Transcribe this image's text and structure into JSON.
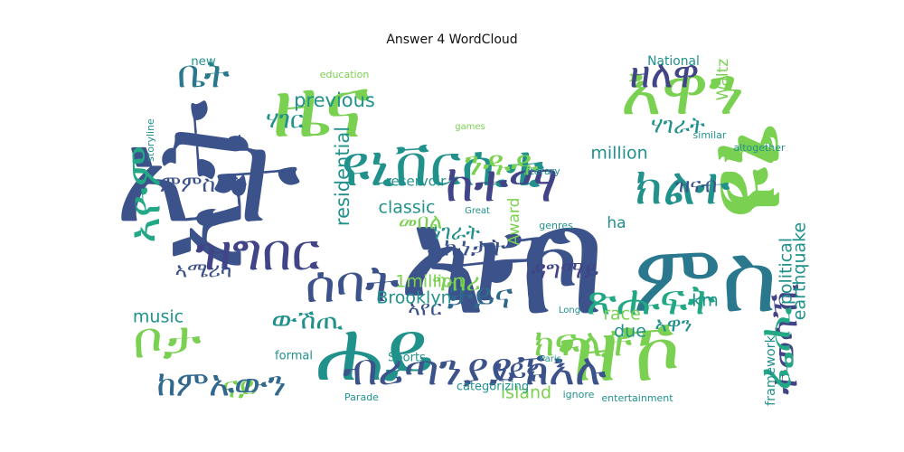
{
  "chart_data": {
    "type": "wordcloud",
    "title": "Answer 4 WordCloud",
    "colormap": "viridis",
    "words": [
      {
        "text": "ናይ",
        "weight": 1.0,
        "color": "#7ad151",
        "rotate": false
      },
      {
        "text": "ኢት",
        "weight": 0.95,
        "color": "#3b528b",
        "rotate": false
      },
      {
        "text": "ሐይ",
        "weight": 0.9,
        "color": "#21918c",
        "rotate": false
      },
      {
        "text": "ኣብ",
        "weight": 0.88,
        "color": "#3b528b",
        "rotate": false
      },
      {
        "text": "ዩኔ",
        "weight": 0.78,
        "color": "#7ad151",
        "rotate": true
      },
      {
        "text": "ዝኾ",
        "weight": 0.72,
        "color": "#7ad151",
        "rotate": false
      },
      {
        "text": "ኢት",
        "weight": 0.7,
        "color": "#3b528b",
        "rotate": true
      },
      {
        "text": "ዝኾ",
        "weight": 0.62,
        "color": "#3b528b",
        "rotate": false
      },
      {
        "text": "ምስ",
        "weight": 0.55,
        "color": "#2a788e",
        "rotate": false
      },
      {
        "text": "ዜና",
        "weight": 0.5,
        "color": "#7ad151",
        "rotate": false
      },
      {
        "text": "ዩኔ",
        "weight": 0.5,
        "color": "#7ad151",
        "rotate": true
      },
      {
        "text": "ዩኒቨርሲቲ",
        "weight": 0.33,
        "color": "#21918c",
        "rotate": false
      },
      {
        "text": "እዋን",
        "weight": 0.42,
        "color": "#7ad151",
        "rotate": false
      },
      {
        "text": "ዘለዋ",
        "weight": 0.3,
        "color": "#414487",
        "rotate": false
      },
      {
        "text": "ቤት",
        "weight": 0.3,
        "color": "#2a788e",
        "rotate": false
      },
      {
        "text": "ክልተ",
        "weight": 0.3,
        "color": "#21918c",
        "rotate": false
      },
      {
        "text": "ከተማ",
        "weight": 0.3,
        "color": "#414487",
        "rotate": false
      },
      {
        "text": "ሰባት",
        "weight": 0.3,
        "color": "#3b528b",
        "rotate": false
      },
      {
        "text": "ዝግበር",
        "weight": 0.3,
        "color": "#414487",
        "rotate": false
      },
      {
        "text": "ብሪጣንያይኽእሉ",
        "weight": 0.26,
        "color": "#3b528b",
        "rotate": false
      },
      {
        "text": "ከምኡውን",
        "weight": 0.26,
        "color": "#31688e",
        "rotate": false
      },
      {
        "text": "ቦታ",
        "weight": 0.3,
        "color": "#7ad151",
        "rotate": false
      },
      {
        "text": "ኣዮም",
        "weight": 0.26,
        "color": "#22a884",
        "rotate": true
      },
      {
        "text": "ጽሑፍት",
        "weight": 0.24,
        "color": "#22a884",
        "rotate": false
      },
      {
        "text": "ክፍሊት",
        "weight": 0.22,
        "color": "#7ad151",
        "rotate": false
      },
      {
        "text": "ቻይና",
        "weight": 0.2,
        "color": "#31688e",
        "rotate": false
      },
      {
        "text": "ንዱዱ",
        "weight": 0.2,
        "color": "#7ad151",
        "rotate": false
      },
      {
        "text": "ተወሳኺ",
        "weight": 0.22,
        "color": "#414487",
        "rotate": true
      },
      {
        "text": "ፌሒ",
        "weight": 0.26,
        "color": "#22a884",
        "rotate": true
      },
      {
        "text": "ነይሩ",
        "weight": 0.18,
        "color": "#3b528b",
        "rotate": false
      },
      {
        "text": "ውሽጢ",
        "weight": 0.16,
        "color": "#21918c",
        "rotate": false
      },
      {
        "text": "ኩነታት",
        "weight": 0.14,
        "color": "#3b528b",
        "rotate": false
      },
      {
        "text": "ግብሪ",
        "weight": 0.14,
        "color": "#7ad151",
        "rotate": false
      },
      {
        "text": "ዳግማይ",
        "weight": 0.14,
        "color": "#414487",
        "rotate": false
      },
      {
        "text": "ምምስራት",
        "weight": 0.13,
        "color": "#3b528b",
        "rotate": false
      },
      {
        "text": "መበል",
        "weight": 0.12,
        "color": "#7ad151",
        "rotate": false
      },
      {
        "text": "ሃገራት",
        "weight": 0.13,
        "color": "#21918c",
        "rotate": false
      },
      {
        "text": "ሃገር",
        "weight": 0.14,
        "color": "#21918c",
        "rotate": false
      },
      {
        "text": "ነገራት",
        "weight": 0.12,
        "color": "#21918c",
        "rotate": false
      },
      {
        "text": "ኣሜሪካ",
        "weight": 0.12,
        "color": "#3b528b",
        "rotate": false
      },
      {
        "text": "ዝናብ",
        "weight": 0.12,
        "color": "#3b528b",
        "rotate": false
      },
      {
        "text": "ኣየር",
        "weight": 0.12,
        "color": "#3b528b",
        "rotate": false
      },
      {
        "text": "ኣዋን",
        "weight": 0.12,
        "color": "#21918c",
        "rotate": false
      },
      {
        "text": "National",
        "weight": 0.12,
        "color": "#21918c",
        "rotate": false
      },
      {
        "text": "previous",
        "weight": 0.11,
        "color": "#21918c",
        "rotate": false
      },
      {
        "text": "residential",
        "weight": 0.11,
        "color": "#21918c",
        "rotate": true
      },
      {
        "text": "classic",
        "weight": 0.1,
        "color": "#21918c",
        "rotate": false
      },
      {
        "text": "million",
        "weight": 0.1,
        "color": "#21918c",
        "rotate": false
      },
      {
        "text": "1million",
        "weight": 0.1,
        "color": "#7ad151",
        "rotate": false
      },
      {
        "text": "Brooklyn",
        "weight": 0.1,
        "color": "#21918c",
        "rotate": false
      },
      {
        "text": "music",
        "weight": 0.1,
        "color": "#21918c",
        "rotate": false
      },
      {
        "text": "political",
        "weight": 0.1,
        "color": "#21918c",
        "rotate": true
      },
      {
        "text": "earthquake",
        "weight": 0.1,
        "color": "#21918c",
        "rotate": true
      },
      {
        "text": "island",
        "weight": 0.1,
        "color": "#7ad151",
        "rotate": false
      },
      {
        "text": "race",
        "weight": 0.1,
        "color": "#7ad151",
        "rotate": false
      },
      {
        "text": "due",
        "weight": 0.1,
        "color": "#21918c",
        "rotate": false
      },
      {
        "text": "km",
        "weight": 0.1,
        "color": "#21918c",
        "rotate": false
      },
      {
        "text": "Award",
        "weight": 0.09,
        "color": "#7ad151",
        "rotate": true
      },
      {
        "text": "Waltz",
        "weight": 0.09,
        "color": "#7ad151",
        "rotate": true
      },
      {
        "text": "new",
        "weight": 0.09,
        "color": "#21918c",
        "rotate": false
      },
      {
        "text": "ha",
        "weight": 0.09,
        "color": "#21918c",
        "rotate": false
      },
      {
        "text": "framework",
        "weight": 0.08,
        "color": "#21918c",
        "rotate": true
      },
      {
        "text": "reservoir",
        "weight": 0.08,
        "color": "#21918c",
        "rotate": false
      },
      {
        "text": "formal",
        "weight": 0.07,
        "color": "#21918c",
        "rotate": false
      },
      {
        "text": "Sports",
        "weight": 0.07,
        "color": "#21918c",
        "rotate": false
      },
      {
        "text": "categorizing",
        "weight": 0.07,
        "color": "#21918c",
        "rotate": false
      },
      {
        "text": "entertainment",
        "weight": 0.06,
        "color": "#21918c",
        "rotate": false
      },
      {
        "text": "ignore",
        "weight": 0.06,
        "color": "#21918c",
        "rotate": false
      },
      {
        "text": "Parade",
        "weight": 0.06,
        "color": "#21918c",
        "rotate": false
      },
      {
        "text": "storyline",
        "weight": 0.06,
        "color": "#21918c",
        "rotate": true
      },
      {
        "text": "literary",
        "weight": 0.06,
        "color": "#21918c",
        "rotate": false
      },
      {
        "text": "genres",
        "weight": 0.06,
        "color": "#21918c",
        "rotate": false
      },
      {
        "text": "similar",
        "weight": 0.06,
        "color": "#21918c",
        "rotate": false
      },
      {
        "text": "altogether",
        "weight": 0.06,
        "color": "#21918c",
        "rotate": false
      },
      {
        "text": "education",
        "weight": 0.06,
        "color": "#7ad151",
        "rotate": false
      },
      {
        "text": "Great",
        "weight": 0.05,
        "color": "#21918c",
        "rotate": false
      },
      {
        "text": "Paris",
        "weight": 0.05,
        "color": "#21918c",
        "rotate": false
      },
      {
        "text": "Long",
        "weight": 0.05,
        "color": "#21918c",
        "rotate": false
      },
      {
        "text": "games",
        "weight": 0.05,
        "color": "#7ad151",
        "rotate": false
      }
    ]
  }
}
